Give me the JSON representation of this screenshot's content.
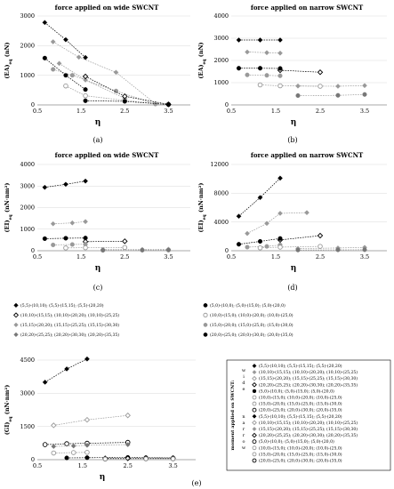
{
  "chart_data": [
    {
      "type": "line",
      "panel": "a",
      "title": "force applied on wide SWCNT",
      "ylabel": "(EA)",
      "ylabel_sub": "eq",
      "ylabel_unit": " (nN)",
      "xlabel": "η",
      "xlim": [
        0.5,
        4.0
      ],
      "ylim": [
        0,
        3000
      ],
      "xticks": [
        0.5,
        1.5,
        2.5,
        3.5
      ],
      "yticks": [
        0,
        1000,
        2000,
        3000
      ],
      "series": [
        {
          "group": "wide-5",
          "marker": "diamond",
          "filled": true,
          "color": "#000000",
          "x": [
            0.67,
            1.15,
            1.6
          ],
          "y": [
            2780,
            2200,
            1600
          ]
        },
        {
          "group": "wide-15",
          "marker": "diamond",
          "filled": true,
          "color": "#999999",
          "x": [
            0.86,
            1.45,
            2.3,
            3.2
          ],
          "y": [
            2130,
            1610,
            1100,
            40
          ]
        },
        {
          "group": "wide-15b",
          "marker": "diamond",
          "filled": true,
          "color": "#999999",
          "x": [
            1.0,
            1.6,
            2.5
          ],
          "y": [
            1400,
            840,
            220
          ]
        },
        {
          "group": "wide-5",
          "marker": "circle",
          "filled": true,
          "color": "#000000",
          "x": [
            0.67,
            1.15,
            1.6
          ],
          "y": [
            1580,
            1000,
            520
          ]
        },
        {
          "group": "wide-15",
          "marker": "circle",
          "filled": true,
          "color": "#999999",
          "x": [
            0.86,
            1.3,
            2.3,
            3.2
          ],
          "y": [
            1200,
            1000,
            470,
            30
          ]
        },
        {
          "group": "wide-10",
          "marker": "circle",
          "filled": false,
          "color": "#999999",
          "x": [
            1.15,
            1.6,
            2.5,
            3.5
          ],
          "y": [
            640,
            310,
            150,
            20
          ]
        },
        {
          "group": "wide-20",
          "marker": "diamond",
          "filled": false,
          "color": "#000000",
          "x": [
            1.6,
            2.5,
            3.5
          ],
          "y": [
            960,
            290,
            20
          ]
        },
        {
          "group": "wide-20",
          "marker": "circle",
          "filled": true,
          "color": "#000000",
          "x": [
            1.6,
            2.5,
            3.5
          ],
          "y": [
            140,
            120,
            10
          ]
        }
      ]
    },
    {
      "type": "line",
      "panel": "b",
      "title": "force applied on narrow SWCNT",
      "ylabel": "(EA)",
      "ylabel_sub": "eq",
      "ylabel_unit": " (nN)",
      "xlabel": "η",
      "xlim": [
        0.5,
        4.0
      ],
      "ylim": [
        0,
        4000
      ],
      "xticks": [
        0.5,
        1.5,
        2.5,
        3.5
      ],
      "yticks": [
        0,
        1000,
        2000,
        3000,
        4000
      ],
      "series": [
        {
          "marker": "diamond",
          "filled": true,
          "color": "#000000",
          "x": [
            0.67,
            1.15,
            1.6
          ],
          "y": [
            2920,
            2920,
            2920
          ]
        },
        {
          "marker": "diamond",
          "filled": true,
          "color": "#999999",
          "x": [
            0.86,
            1.3,
            1.6
          ],
          "y": [
            2380,
            2350,
            2330
          ]
        },
        {
          "marker": "diamond",
          "filled": false,
          "color": "#000000",
          "x": [
            1.6,
            2.5
          ],
          "y": [
            1560,
            1470
          ]
        },
        {
          "marker": "diamond",
          "filled": true,
          "color": "#999999",
          "x": [
            2.0,
            2.9,
            3.5
          ],
          "y": [
            850,
            840,
            870
          ]
        },
        {
          "marker": "circle",
          "filled": true,
          "color": "#000000",
          "x": [
            0.67,
            1.15,
            1.6
          ],
          "y": [
            1650,
            1650,
            1640
          ]
        },
        {
          "marker": "circle",
          "filled": true,
          "color": "#999999",
          "x": [
            0.86,
            1.3,
            1.6
          ],
          "y": [
            1350,
            1330,
            1310
          ]
        },
        {
          "marker": "circle",
          "filled": false,
          "color": "#999999",
          "x": [
            1.15,
            1.6,
            2.5
          ],
          "y": [
            900,
            860,
            840
          ]
        },
        {
          "marker": "circle",
          "filled": true,
          "color": "#777777",
          "x": [
            2.0,
            2.9,
            3.5
          ],
          "y": [
            420,
            430,
            470
          ]
        }
      ]
    },
    {
      "type": "line",
      "panel": "c",
      "title": "force applied on wide SWCNT",
      "ylabel": "(EI)",
      "ylabel_sub": "eq",
      "ylabel_unit": " (nN·nm²)",
      "xlabel": "η",
      "xlim": [
        0.5,
        4.0
      ],
      "ylim": [
        0,
        4000
      ],
      "xticks": [
        0.5,
        1.5,
        2.5,
        3.5
      ],
      "yticks": [
        0,
        1000,
        2000,
        3000,
        4000
      ],
      "series": [
        {
          "marker": "diamond",
          "filled": true,
          "color": "#000000",
          "x": [
            0.67,
            1.15,
            1.6
          ],
          "y": [
            2940,
            3080,
            3230
          ]
        },
        {
          "marker": "diamond",
          "filled": true,
          "color": "#999999",
          "x": [
            0.86,
            1.3,
            1.6
          ],
          "y": [
            1250,
            1290,
            1350
          ]
        },
        {
          "marker": "circle",
          "filled": true,
          "color": "#000000",
          "x": [
            0.67,
            1.15,
            1.6
          ],
          "y": [
            560,
            580,
            590
          ]
        },
        {
          "marker": "diamond",
          "filled": false,
          "color": "#000000",
          "x": [
            1.6,
            2.5
          ],
          "y": [
            420,
            440
          ]
        },
        {
          "marker": "circle",
          "filled": true,
          "color": "#999999",
          "x": [
            0.86,
            1.3,
            1.6
          ],
          "y": [
            270,
            290,
            300
          ]
        },
        {
          "marker": "circle",
          "filled": false,
          "color": "#999999",
          "x": [
            1.15,
            1.6,
            2.5
          ],
          "y": [
            130,
            140,
            150
          ]
        },
        {
          "marker": "diamond",
          "filled": true,
          "color": "#999999",
          "x": [
            2.0,
            2.9,
            3.5
          ],
          "y": [
            60,
            60,
            70
          ]
        },
        {
          "marker": "circle",
          "filled": true,
          "color": "#777777",
          "x": [
            2.0,
            2.9,
            3.5
          ],
          "y": [
            20,
            25,
            30
          ]
        }
      ]
    },
    {
      "type": "line",
      "panel": "d",
      "title": "force applied on narrow SWCNT",
      "ylabel": "(EI)",
      "ylabel_sub": "eq",
      "ylabel_unit": " (nN·nm²)",
      "xlabel": "η",
      "xlim": [
        0.5,
        4.0
      ],
      "ylim": [
        0,
        12000
      ],
      "xticks": [
        0.5,
        1.5,
        2.5,
        3.5
      ],
      "yticks": [
        0,
        4000,
        8000,
        12000
      ],
      "series": [
        {
          "marker": "diamond",
          "filled": true,
          "color": "#000000",
          "x": [
            0.67,
            1.15,
            1.6
          ],
          "y": [
            4800,
            7400,
            10100
          ]
        },
        {
          "marker": "diamond",
          "filled": true,
          "color": "#999999",
          "x": [
            0.86,
            1.3,
            1.6,
            2.2
          ],
          "y": [
            2400,
            3800,
            5200,
            5300
          ]
        },
        {
          "marker": "diamond",
          "filled": false,
          "color": "#000000",
          "x": [
            1.6,
            2.5
          ],
          "y": [
            1500,
            2100
          ]
        },
        {
          "marker": "circle",
          "filled": true,
          "color": "#000000",
          "x": [
            0.67,
            1.15,
            1.6
          ],
          "y": [
            900,
            1300,
            1700
          ]
        },
        {
          "marker": "circle",
          "filled": true,
          "color": "#999999",
          "x": [
            0.86,
            1.3,
            1.6
          ],
          "y": [
            500,
            600,
            800
          ]
        },
        {
          "marker": "circle",
          "filled": false,
          "color": "#999999",
          "x": [
            1.15,
            1.6,
            2.5
          ],
          "y": [
            400,
            500,
            600
          ]
        },
        {
          "marker": "diamond",
          "filled": true,
          "color": "#999999",
          "x": [
            2.0,
            2.9,
            3.5
          ],
          "y": [
            300,
            380,
            460
          ]
        },
        {
          "marker": "circle",
          "filled": true,
          "color": "#777777",
          "x": [
            2.0,
            2.9,
            3.5
          ],
          "y": [
            100,
            120,
            140
          ]
        }
      ]
    },
    {
      "type": "line",
      "panel": "e",
      "title": "",
      "ylabel": "(GI)",
      "ylabel_sub": "eq",
      "ylabel_unit": " (nN·nm²)",
      "xlabel": "η",
      "xlim": [
        0.5,
        4.0
      ],
      "ylim": [
        0,
        4500
      ],
      "xticks": [
        0.5,
        1.5,
        2.5,
        3.5
      ],
      "yticks": [
        0,
        1500,
        3000,
        4500
      ],
      "series": [
        {
          "marker": "diamond",
          "filled": true,
          "color": "#000000",
          "x": [
            0.67,
            1.15,
            1.6
          ],
          "y": [
            3500,
            4100,
            4550
          ]
        },
        {
          "marker": "diamond",
          "filled": false,
          "color": "#999999",
          "x": [
            0.86,
            1.6,
            2.5
          ],
          "y": [
            1550,
            1800,
            2000
          ]
        },
        {
          "marker": "circle",
          "filled": false,
          "color": "#000000",
          "x": [
            0.67,
            1.15,
            1.6,
            2.5
          ],
          "y": [
            680,
            720,
            740,
            780
          ]
        },
        {
          "marker": "diamond",
          "filled": true,
          "color": "#777777",
          "x": [
            0.86,
            1.3,
            1.6,
            2.5
          ],
          "y": [
            600,
            620,
            650,
            680
          ]
        },
        {
          "marker": "circle",
          "filled": false,
          "color": "#999999",
          "x": [
            0.86,
            1.3,
            1.6
          ],
          "y": [
            300,
            320,
            330
          ]
        },
        {
          "marker": "circle",
          "filled": true,
          "color": "#000000",
          "x": [
            1.15,
            1.6,
            2.5,
            2.9,
            3.5
          ],
          "y": [
            80,
            90,
            100,
            90,
            80
          ]
        },
        {
          "marker": "diamond",
          "filled": false,
          "color": "#000000",
          "x": [
            2.0,
            2.5,
            2.9,
            3.5
          ],
          "y": [
            60,
            60,
            70,
            70
          ]
        },
        {
          "marker": "circle",
          "filled": false,
          "color": "#777777",
          "x": [
            2.0,
            2.9,
            3.5
          ],
          "y": [
            30,
            40,
            40
          ]
        }
      ]
    }
  ],
  "captions": [
    "(a)",
    "(b)",
    "(c)",
    "(d)",
    "(e)"
  ],
  "legend_top": [
    {
      "marker": "diamond",
      "filled": true,
      "color": "#000000",
      "label": "(5,5)-(10,10); (5,5)-(15,15); (5,5)-(20,20)"
    },
    {
      "marker": "diamond",
      "filled": false,
      "color": "#000000",
      "label": "(10,10)-(15,15); (10,10)-(20,20); (10,10)-(25,25)"
    },
    {
      "marker": "diamond",
      "filled": true,
      "color": "#999999",
      "label": "(15,15)-(20,20); (15,15)-(25,25); (15,15)-(30,30)"
    },
    {
      "marker": "diamond",
      "filled": true,
      "color": "#777777",
      "label": "(20,20)-(25,25); (20,20)-(30,30); (20,20)-(35,35)"
    },
    {
      "marker": "circle",
      "filled": true,
      "color": "#000000",
      "label": "(5,0)-(10,0); (5,0)-(15,0); (5,0)-(20,0)"
    },
    {
      "marker": "circle",
      "filled": false,
      "color": "#999999",
      "label": "(10,0)-(15,0); (10,0)-(20,0); (10,0)-(25,0)"
    },
    {
      "marker": "circle",
      "filled": true,
      "color": "#999999",
      "label": "(15,0)-(20,0); (15,0)-(25,0); (15,0)-(30,0)"
    },
    {
      "marker": "circle",
      "filled": true,
      "color": "#000000",
      "label": "(20,0)-(25,0); (20,0)-(30,0); (20,0)-(35,0)"
    }
  ],
  "legend_e": {
    "side_title": "moment applied on SWCNT:",
    "wide_label": "wide",
    "narrow_label": "narrow",
    "items": [
      {
        "marker": "diamond",
        "filled": true,
        "color": "#000000",
        "label": "(5,5)-(10,10); (5,5)-(15,15); (5,5)-(20,20)"
      },
      {
        "marker": "diamond",
        "filled": true,
        "color": "#999999",
        "label": "(10,10)-(15,15); (10,10)-(20,20); (10,10)-(25,25)"
      },
      {
        "marker": "diamond",
        "filled": false,
        "color": "#999999",
        "label": "(15,15)-(20,20); (15,15)-(25,25); (15,15)-(30,30)"
      },
      {
        "marker": "diamond",
        "filled": false,
        "color": "#000000",
        "label": "(20,20)-(25,25); (20,20)-(30,30); (20,20)-(35,35)"
      },
      {
        "marker": "circle",
        "filled": true,
        "color": "#000000",
        "label": "(5,0)-(10,0); (5,0)-(15,0); (5,0)-(20,0)"
      },
      {
        "marker": "circle",
        "filled": false,
        "color": "#999999",
        "label": "(10,0)-(15,0); (10,0)-(20,0); (10,0)-(25,0)"
      },
      {
        "marker": "circle",
        "filled": false,
        "color": "#999999",
        "label": "(15,0)-(20,0); (15,0)-(25,0); (15,0)-(30,0)"
      },
      {
        "marker": "circle",
        "filled": false,
        "color": "#000000",
        "label": "(20,0)-(25,0); (20,0)-(30,0); (20,0)-(35,0)"
      },
      {
        "marker": "diamond",
        "filled": true,
        "color": "#000000",
        "label": "(5,5)-(10,10); (5,5)-(15,15); (5,5)-(20,20)"
      },
      {
        "marker": "diamond",
        "filled": false,
        "color": "#999999",
        "label": "(10,10)-(15,15); (10,10)-(20,20); (10,10)-(25,25)"
      },
      {
        "marker": "diamond",
        "filled": true,
        "color": "#999999",
        "label": "(15,15)-(20,20); (15,15)-(25,25); (15,15)-(30,30)"
      },
      {
        "marker": "diamond",
        "filled": false,
        "color": "#000000",
        "label": "(20,20)-(25,25); (20,20)-(30,30); (20,20)-(35,35)"
      },
      {
        "marker": "circle",
        "filled": false,
        "color": "#000000",
        "label": "(5,0)-(10,0); (5,0)-(15,0); (5,0)-(20,0)"
      },
      {
        "marker": "circle",
        "filled": false,
        "color": "#999999",
        "label": "(10,0)-(15,0); (10,0)-(20,0); (10,0)-(25,0)"
      },
      {
        "marker": "circle",
        "filled": false,
        "color": "#999999",
        "label": "(15,0)-(20,0); (15,0)-(25,0); (15,0)-(30,0)"
      },
      {
        "marker": "circle",
        "filled": false,
        "color": "#000000",
        "label": "(20,0)-(25,0); (20,0)-(30,0); (20,0)-(35,0)"
      }
    ]
  }
}
